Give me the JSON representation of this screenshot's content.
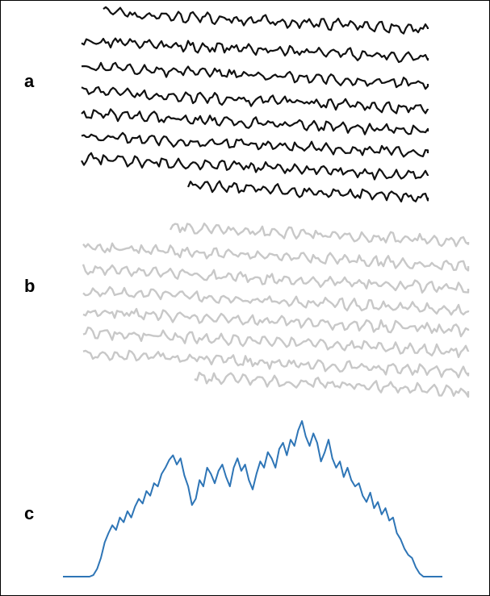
{
  "panels": {
    "a": {
      "label": "a"
    },
    "b": {
      "label": "b"
    }
  },
  "chart_data": {
    "type": "line",
    "label": "c",
    "x": [
      0,
      1,
      2,
      3,
      4,
      5,
      6,
      7,
      8,
      9,
      10,
      11,
      12,
      13,
      14,
      15,
      16,
      17,
      18,
      19,
      20,
      21,
      22,
      23,
      24,
      25,
      26,
      27,
      28,
      29,
      30,
      31,
      32,
      33,
      34,
      35,
      36,
      37,
      38,
      39,
      40,
      41,
      42,
      43,
      44,
      45,
      46,
      47,
      48,
      49,
      50,
      51,
      52,
      53,
      54,
      55,
      56,
      57,
      58,
      59,
      60,
      61,
      62,
      63,
      64,
      65,
      66,
      67,
      68,
      69,
      70,
      71,
      72,
      73,
      74,
      75,
      76,
      77,
      78,
      79,
      80,
      81,
      82,
      83,
      84,
      85,
      86,
      87,
      88,
      89,
      90,
      91,
      92,
      93,
      94,
      95,
      96,
      97,
      98,
      99,
      100
    ],
    "values": [
      0,
      0,
      0,
      0,
      0,
      0,
      0,
      0,
      1,
      5,
      12,
      22,
      28,
      33,
      30,
      38,
      35,
      42,
      38,
      45,
      50,
      47,
      55,
      52,
      60,
      58,
      66,
      70,
      75,
      78,
      72,
      76,
      65,
      58,
      46,
      50,
      62,
      58,
      70,
      66,
      60,
      68,
      72,
      64,
      58,
      70,
      76,
      68,
      72,
      62,
      56,
      66,
      74,
      70,
      80,
      76,
      70,
      82,
      86,
      78,
      88,
      84,
      94,
      100,
      90,
      84,
      92,
      86,
      74,
      80,
      88,
      76,
      70,
      74,
      64,
      70,
      62,
      58,
      60,
      52,
      48,
      54,
      44,
      48,
      40,
      44,
      36,
      38,
      28,
      24,
      18,
      14,
      12,
      6,
      2,
      0,
      0,
      0,
      0,
      0,
      0
    ],
    "color": "#2e75b6",
    "xlim": [
      0,
      100
    ],
    "ylim": [
      0,
      100
    ]
  }
}
